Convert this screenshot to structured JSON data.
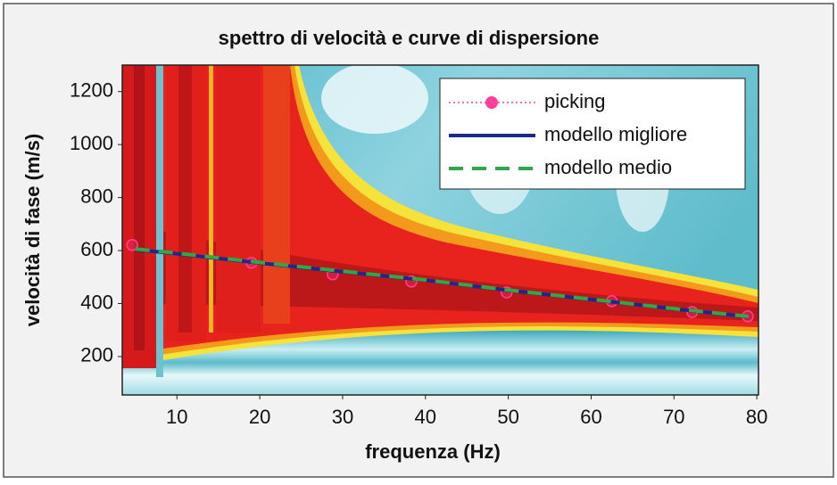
{
  "chart_data": {
    "type": "line",
    "title": "spettro di velocità e curve di dispersione",
    "xlabel": "frequenza (Hz)",
    "ylabel": "velocità di fase (m/s)",
    "xlim": [
      3.4,
      80.2
    ],
    "ylim": [
      55,
      1300
    ],
    "xticks": [
      10,
      20,
      30,
      40,
      50,
      60,
      70,
      80
    ],
    "yticks": [
      200,
      400,
      600,
      800,
      1000,
      1200
    ],
    "grid": false,
    "legend": "upper right",
    "series": [
      {
        "name": "picking",
        "color": "#ff3d9a",
        "style": "markers",
        "x": [
          4.6,
          19.0,
          28.8,
          38.3,
          49.8,
          62.5,
          72.2,
          78.9
        ],
        "values": [
          621,
          554,
          510,
          483,
          442,
          409,
          368,
          352
        ]
      },
      {
        "name": "modello migliore",
        "color": "#1a2a8c",
        "style": "solid",
        "x": [
          5,
          10,
          20,
          30,
          40,
          50,
          60,
          70,
          79
        ],
        "values": [
          604,
          588,
          553,
          520,
          488,
          450,
          415,
          380,
          350
        ]
      },
      {
        "name": "modello medio",
        "color": "#2fa84a",
        "style": "dashed",
        "x": [
          5,
          10,
          20,
          30,
          40,
          50,
          60,
          70,
          79
        ],
        "values": [
          606,
          590,
          555,
          522,
          489,
          451,
          416,
          381,
          351
        ]
      }
    ]
  }
}
